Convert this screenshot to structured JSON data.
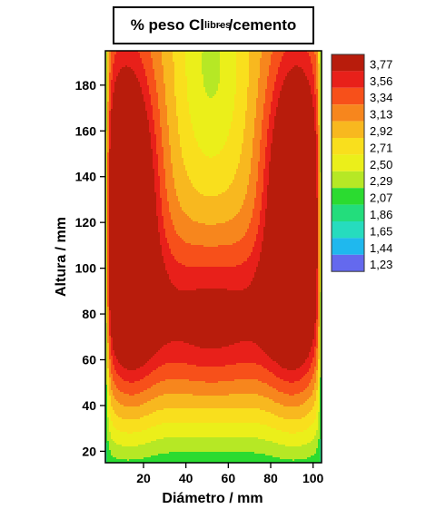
{
  "chart_data": {
    "type": "heatmap",
    "subtype": "filled-contour",
    "title": {
      "prefix": "% peso Cl",
      "superscript": "-",
      "subscript": "libres",
      "suffix": " /cemento"
    },
    "xlabel": "Diámetro / mm",
    "ylabel": "Altura / mm",
    "xlim": [
      2,
      104
    ],
    "ylim": [
      15,
      195
    ],
    "xticks": [
      20,
      40,
      60,
      80,
      100
    ],
    "yticks": [
      20,
      40,
      60,
      80,
      100,
      120,
      140,
      160,
      180
    ],
    "legend": {
      "placement": "right",
      "labels": [
        "3,77",
        "3,56",
        "3,34",
        "3,13",
        "2,92",
        "2,71",
        "2,50",
        "2,29",
        "2,07",
        "1,86",
        "1,65",
        "1,44",
        "1,23"
      ],
      "levels": [
        1.23,
        1.44,
        1.65,
        1.86,
        2.07,
        2.29,
        2.5,
        2.71,
        2.92,
        3.13,
        3.34,
        3.56,
        3.77
      ],
      "colors": [
        "#b81c0c",
        "#e8201a",
        "#f7501a",
        "#f7861d",
        "#f8b81f",
        "#f9df1d",
        "#ebef1a",
        "#b6e825",
        "#2bdb30",
        "#23dd7c",
        "#26dcbe",
        "#1fb8ee",
        "#6469ee"
      ]
    },
    "grid": false,
    "model": {
      "edge": 1.9,
      "edge_width": 1.2,
      "base": 2.07,
      "base_rise": 1.0,
      "base_height": 38,
      "peaks": [
        {
          "x": 12,
          "y": 123,
          "amp": 1.8,
          "sx": 10,
          "sy": 48
        },
        {
          "x": 92,
          "y": 123,
          "amp": 1.8,
          "sx": 10,
          "sy": 48
        },
        {
          "x": 52,
          "y": 75,
          "amp": 1.05,
          "sx": 32,
          "sy": 26
        },
        {
          "x": 52,
          "y": 190,
          "amp": -0.6,
          "sx": 12,
          "sy": 40
        }
      ]
    }
  }
}
